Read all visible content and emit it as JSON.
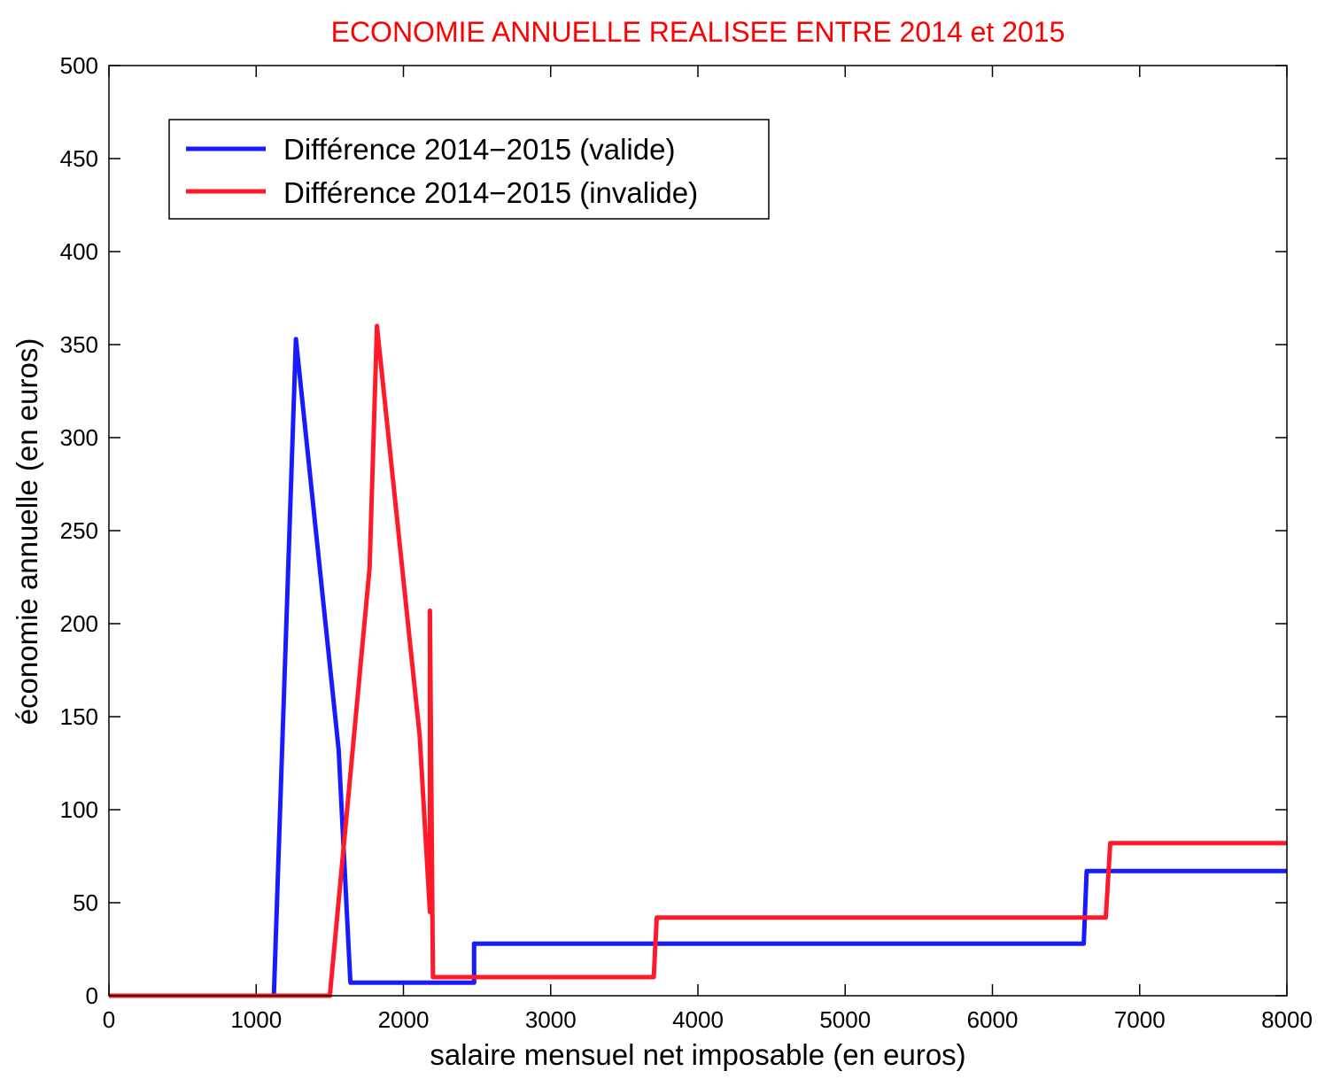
{
  "chart_data": {
    "type": "line",
    "title": "ECONOMIE ANNUELLE REALISEE ENTRE 2014 et 2015",
    "title_color": "#ff0000",
    "xlabel": "salaire mensuel net imposable (en euros)",
    "ylabel": "économie annuelle (en euros)",
    "xlim": [
      0,
      8000
    ],
    "ylim": [
      0,
      500
    ],
    "xticks": [
      0,
      1000,
      2000,
      3000,
      4000,
      5000,
      6000,
      7000,
      8000
    ],
    "yticks": [
      0,
      50,
      100,
      150,
      200,
      250,
      300,
      350,
      400,
      450,
      500
    ],
    "grid": false,
    "legend_position": "top-left",
    "series": [
      {
        "name": "Différence 2014−2015 (valide)",
        "color": "#1a1aff",
        "points": [
          [
            0,
            0
          ],
          [
            1120,
            0
          ],
          [
            1270,
            353
          ],
          [
            1560,
            132
          ],
          [
            1640,
            7
          ],
          [
            2480,
            7
          ],
          [
            2480,
            28
          ],
          [
            2490,
            28
          ],
          [
            6620,
            28
          ],
          [
            6640,
            67
          ],
          [
            8000,
            67
          ]
        ]
      },
      {
        "name": "Différence 2014−2015 (invalide)",
        "color": "#ff1a2a",
        "points": [
          [
            0,
            0
          ],
          [
            1500,
            0
          ],
          [
            1770,
            230
          ],
          [
            1820,
            360
          ],
          [
            2110,
            140
          ],
          [
            2180,
            45
          ],
          [
            2180,
            207
          ],
          [
            2200,
            10
          ],
          [
            3700,
            10
          ],
          [
            3720,
            42
          ],
          [
            6770,
            42
          ],
          [
            6800,
            82
          ],
          [
            8000,
            82
          ]
        ]
      }
    ]
  }
}
